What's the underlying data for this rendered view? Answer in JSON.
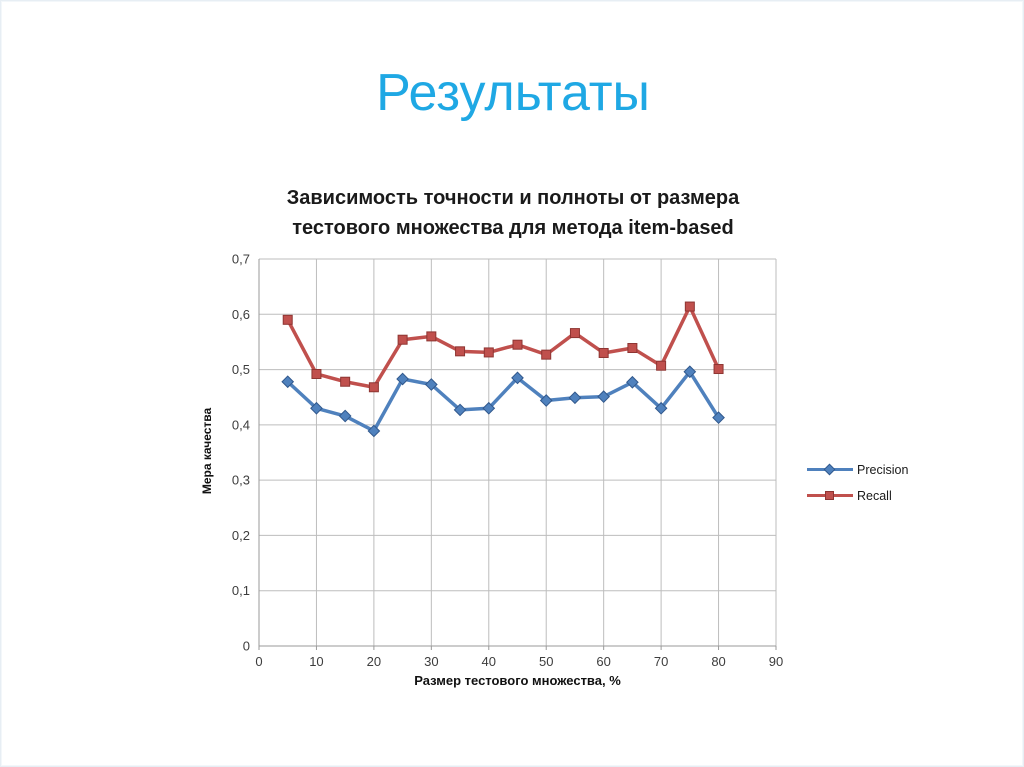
{
  "slide": {
    "title": "Результаты",
    "title_color": "#1FA8E4",
    "background": "#ffffff",
    "border_color": "#e7eef4"
  },
  "chart_data": {
    "type": "line",
    "title": "Зависимость точности и полноты от размера тестового множества для метода item-based",
    "title_lines": [
      "Зависимость точности и полноты от размера",
      "тестового множества для метода item-based"
    ],
    "xlabel": "Размер тестового множества, %",
    "ylabel": "Мера качества",
    "xlim": [
      0,
      90
    ],
    "ylim": [
      0,
      0.7
    ],
    "grid": true,
    "legend_position": "right",
    "x_ticks": [
      [
        0,
        "0"
      ],
      [
        10,
        "10"
      ],
      [
        20,
        "20"
      ],
      [
        30,
        "30"
      ],
      [
        40,
        "40"
      ],
      [
        50,
        "50"
      ],
      [
        60,
        "60"
      ],
      [
        70,
        "70"
      ],
      [
        80,
        "80"
      ],
      [
        90,
        "90"
      ]
    ],
    "y_ticks": [
      [
        0,
        "0"
      ],
      [
        0.1,
        "0,1"
      ],
      [
        0.2,
        "0,2"
      ],
      [
        0.3,
        "0,3"
      ],
      [
        0.4,
        "0,4"
      ],
      [
        0.5,
        "0,5"
      ],
      [
        0.6,
        "0,6"
      ],
      [
        0.7,
        "0,7"
      ]
    ],
    "x": [
      5,
      10,
      15,
      20,
      25,
      30,
      35,
      40,
      45,
      50,
      55,
      60,
      65,
      70,
      75,
      80
    ],
    "series": [
      {
        "name": "Precision",
        "color": "#4F81BD",
        "marker": "diamond",
        "marker_stroke": "#31588C",
        "values": [
          0.478,
          0.43,
          0.416,
          0.389,
          0.483,
          0.473,
          0.427,
          0.43,
          0.485,
          0.444,
          0.449,
          0.451,
          0.477,
          0.43,
          0.496,
          0.413
        ]
      },
      {
        "name": "Recall",
        "color": "#C0504D",
        "marker": "square",
        "marker_stroke": "#8E3532",
        "values": [
          0.59,
          0.492,
          0.478,
          0.468,
          0.554,
          0.56,
          0.533,
          0.531,
          0.545,
          0.527,
          0.566,
          0.53,
          0.539,
          0.507,
          0.614,
          0.501
        ]
      }
    ],
    "colors": {
      "gridline": "#bdbdbd",
      "axis_line": "#9a9a9a",
      "tick_label": "#3d3d3d"
    }
  }
}
